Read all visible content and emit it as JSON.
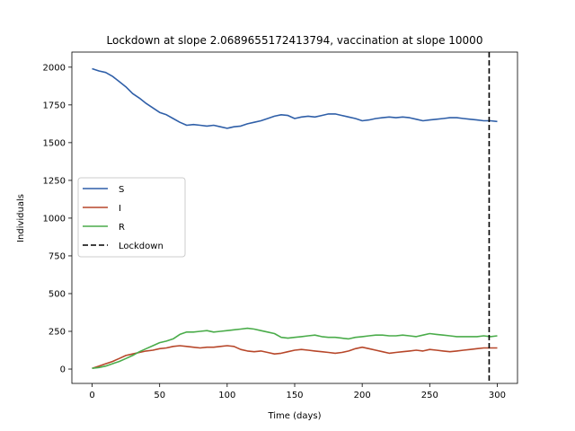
{
  "chart_data": {
    "type": "line",
    "title": "Lockdown at slope 2.0689655172413794, vaccination at slope 10000",
    "xlabel": "Time (days)",
    "ylabel": "Individuals",
    "xlim": [
      -15,
      315
    ],
    "ylim": [
      -95,
      2100
    ],
    "xticks": [
      0,
      50,
      100,
      150,
      200,
      250,
      300
    ],
    "yticks": [
      0,
      250,
      500,
      750,
      1000,
      1250,
      1500,
      1750,
      2000
    ],
    "grid": false,
    "legend_position": "center-left",
    "series": [
      {
        "name": "S",
        "color": "#2f5fa8",
        "x": [
          0,
          5,
          10,
          15,
          20,
          25,
          30,
          35,
          40,
          45,
          50,
          55,
          60,
          65,
          70,
          75,
          80,
          85,
          90,
          95,
          100,
          105,
          110,
          115,
          120,
          125,
          130,
          135,
          140,
          145,
          150,
          155,
          160,
          165,
          170,
          175,
          180,
          185,
          190,
          195,
          200,
          205,
          210,
          215,
          220,
          225,
          230,
          235,
          240,
          245,
          250,
          255,
          260,
          265,
          270,
          275,
          280,
          285,
          290,
          295,
          300
        ],
        "y": [
          1990,
          1975,
          1965,
          1940,
          1905,
          1870,
          1825,
          1795,
          1760,
          1730,
          1700,
          1685,
          1660,
          1635,
          1615,
          1620,
          1615,
          1610,
          1615,
          1605,
          1595,
          1605,
          1610,
          1625,
          1635,
          1645,
          1660,
          1675,
          1685,
          1680,
          1660,
          1670,
          1675,
          1670,
          1680,
          1690,
          1690,
          1680,
          1670,
          1660,
          1645,
          1650,
          1660,
          1665,
          1670,
          1665,
          1670,
          1665,
          1655,
          1645,
          1650,
          1655,
          1660,
          1665,
          1665,
          1660,
          1655,
          1650,
          1645,
          1645,
          1640
        ]
      },
      {
        "name": "I",
        "color": "#b7472a",
        "x": [
          0,
          5,
          10,
          15,
          20,
          25,
          30,
          35,
          40,
          45,
          50,
          55,
          60,
          65,
          70,
          75,
          80,
          85,
          90,
          95,
          100,
          105,
          110,
          115,
          120,
          125,
          130,
          135,
          140,
          145,
          150,
          155,
          160,
          165,
          170,
          175,
          180,
          185,
          190,
          195,
          200,
          205,
          210,
          215,
          220,
          225,
          230,
          235,
          240,
          245,
          250,
          255,
          260,
          265,
          270,
          275,
          280,
          285,
          290,
          295,
          300
        ],
        "y": [
          5,
          20,
          35,
          50,
          70,
          90,
          100,
          110,
          120,
          125,
          135,
          140,
          150,
          155,
          150,
          145,
          140,
          145,
          145,
          150,
          155,
          150,
          130,
          120,
          115,
          120,
          110,
          100,
          105,
          115,
          125,
          130,
          125,
          120,
          115,
          110,
          105,
          110,
          120,
          135,
          145,
          135,
          125,
          115,
          105,
          110,
          115,
          120,
          125,
          120,
          130,
          125,
          120,
          115,
          120,
          125,
          130,
          135,
          140,
          140,
          140
        ]
      },
      {
        "name": "R",
        "color": "#4aac4a",
        "x": [
          0,
          5,
          10,
          15,
          20,
          25,
          30,
          35,
          40,
          45,
          50,
          55,
          60,
          65,
          70,
          75,
          80,
          85,
          90,
          95,
          100,
          105,
          110,
          115,
          120,
          125,
          130,
          135,
          140,
          145,
          150,
          155,
          160,
          165,
          170,
          175,
          180,
          185,
          190,
          195,
          200,
          205,
          210,
          215,
          220,
          225,
          230,
          235,
          240,
          245,
          250,
          255,
          260,
          265,
          270,
          275,
          280,
          285,
          290,
          295,
          300
        ],
        "y": [
          5,
          10,
          20,
          35,
          50,
          70,
          90,
          115,
          135,
          155,
          175,
          185,
          200,
          230,
          245,
          245,
          250,
          255,
          245,
          250,
          255,
          260,
          265,
          270,
          265,
          255,
          245,
          235,
          210,
          205,
          210,
          215,
          220,
          225,
          215,
          210,
          210,
          205,
          200,
          210,
          215,
          220,
          225,
          225,
          220,
          220,
          225,
          220,
          215,
          225,
          235,
          230,
          225,
          220,
          215,
          215,
          215,
          215,
          220,
          215,
          220
        ]
      }
    ],
    "vlines": [
      {
        "name": "Lockdown",
        "x": 294,
        "color": "#000000",
        "style": "dashed"
      }
    ]
  },
  "legend": {
    "items": [
      {
        "label": "S",
        "color": "#2f5fa8",
        "style": "solid"
      },
      {
        "label": "I",
        "color": "#b7472a",
        "style": "solid"
      },
      {
        "label": "R",
        "color": "#4aac4a",
        "style": "solid"
      },
      {
        "label": "Lockdown",
        "color": "#000000",
        "style": "dashed"
      }
    ]
  }
}
